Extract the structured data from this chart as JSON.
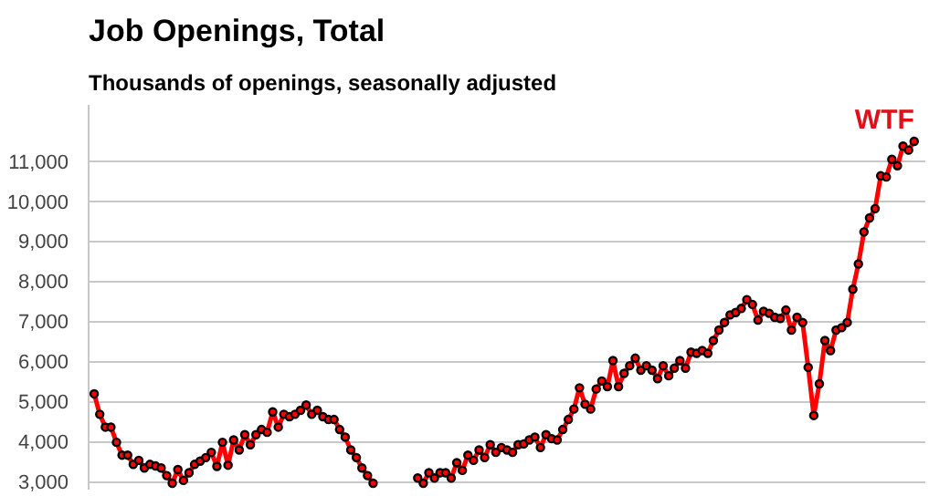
{
  "chart_data": {
    "type": "line",
    "title": "Job Openings, Total",
    "subtitle": "Thousands of openings, seasonally adjusted",
    "annotations": [
      "WTF"
    ],
    "categories": [
      null,
      null,
      null,
      null,
      null,
      null,
      null,
      null,
      null,
      null,
      null,
      null,
      null,
      null,
      null,
      null,
      null,
      null,
      null,
      null,
      null,
      null,
      null,
      null,
      null,
      null,
      null,
      null,
      null,
      null,
      null,
      null,
      null,
      null,
      null,
      null,
      null,
      null,
      null,
      null,
      null,
      null,
      null,
      null,
      null,
      null,
      null,
      null,
      null,
      null,
      null,
      null,
      null,
      null,
      null,
      null,
      null,
      null,
      null,
      null,
      null,
      null,
      null,
      null,
      null,
      null,
      null,
      null,
      null,
      null,
      null,
      null,
      null,
      null,
      null,
      null,
      null,
      null,
      null,
      null,
      null,
      null,
      null,
      null,
      null,
      null,
      null,
      null,
      null,
      null,
      null,
      null,
      null,
      null,
      null,
      null,
      null,
      null,
      null,
      null,
      null,
      null,
      null,
      null,
      null,
      null,
      null,
      null,
      null,
      null,
      null,
      null,
      null,
      null,
      null,
      null,
      null,
      null,
      null,
      null,
      null,
      null,
      null,
      null,
      null,
      null,
      null,
      null,
      null,
      null,
      null,
      null,
      null,
      null,
      null,
      null,
      null,
      null,
      null,
      null,
      null,
      null,
      null,
      null,
      null,
      null,
      null,
      null
    ],
    "series": [
      {
        "color": "#ff0000",
        "values": [
          5190,
          4680,
          4360,
          4360,
          3980,
          3660,
          3660,
          3430,
          3530,
          3340,
          3430,
          3390,
          3340,
          3150,
          2960,
          3300,
          3030,
          3220,
          3430,
          3510,
          3600,
          3730,
          3380,
          3980,
          3410,
          4040,
          3790,
          4170,
          3920,
          4170,
          4300,
          4230,
          4740,
          4360,
          4680,
          4620,
          4680,
          4780,
          4910,
          4680,
          4780,
          4620,
          4550,
          4550,
          4300,
          4110,
          3790,
          3600,
          3340,
          3150,
          2960,
          null,
          null,
          null,
          null,
          null,
          null,
          null,
          null,
          null,
          null,
          null,
          null,
          null,
          null,
          null,
          null,
          null,
          null,
          null,
          null,
          null,
          null,
          null,
          null,
          null,
          null,
          null,
          null,
          null,
          null,
          null,
          null,
          null,
          null,
          null,
          null,
          null,
          null,
          null,
          null,
          null,
          null,
          null,
          null,
          null,
          null,
          null,
          null,
          null,
          null,
          null,
          null,
          null,
          null,
          null,
          null,
          null,
          null,
          null,
          null,
          null,
          null,
          null,
          null,
          null,
          null,
          null,
          null,
          null,
          null,
          null,
          null,
          null,
          null,
          null,
          null,
          null,
          null,
          null,
          null,
          null,
          null,
          null,
          null,
          null,
          null,
          null,
          null,
          null,
          null,
          null,
          null,
          null,
          null,
          null,
          null,
          null
        ]
      },
      {
        "color": "#ff0000",
        "values": [
          null,
          null,
          null,
          null,
          null,
          null,
          null,
          null,
          null,
          null,
          null,
          null,
          null,
          null,
          null,
          null,
          null,
          null,
          null,
          null,
          null,
          null,
          null,
          null,
          null,
          null,
          null,
          null,
          null,
          null,
          null,
          null,
          null,
          null,
          null,
          null,
          null,
          null,
          null,
          null,
          null,
          null,
          null,
          null,
          null,
          null,
          null,
          null,
          null,
          null,
          null,
          null,
          null,
          null,
          null,
          null,
          null,
          null,
          3090,
          2960,
          3220,
          3090,
          3220,
          3220,
          3090,
          3470,
          3280,
          3660,
          3530,
          3790,
          3600,
          3920,
          3730,
          3850,
          3790,
          3730,
          3920,
          3940,
          4040,
          4110,
          3850,
          4170,
          4070,
          4040,
          4300,
          4550,
          4810,
          5340,
          4930,
          4810,
          5310,
          5510,
          5370,
          6020,
          5370,
          5700,
          5890,
          6080,
          5780,
          5890,
          5780,
          5570,
          5890,
          5640,
          5830,
          6020,
          5830,
          6230,
          6200,
          6270,
          6200,
          6520,
          6780,
          6970,
          7160,
          7220,
          7320,
          7540,
          7420,
          7030,
          7250,
          7200,
          7100,
          7070,
          7280,
          6780,
          7100,
          6970,
          5850,
          4650,
          5440,
          6520,
          6270,
          6780,
          6840,
          6970,
          7800,
          8430,
          9230,
          9580,
          9810,
          10630,
          10600,
          11040,
          10880,
          11370,
          11270,
          11490
        ]
      }
    ],
    "ylim": [
      2800,
      12400
    ],
    "yticks": [
      {
        "value": 3000,
        "label": "3,000"
      },
      {
        "value": 4000,
        "label": "4,000"
      },
      {
        "value": 5000,
        "label": "5,000"
      },
      {
        "value": 6000,
        "label": "6,000"
      },
      {
        "value": 7000,
        "label": "7,000"
      },
      {
        "value": 8000,
        "label": "8,000"
      },
      {
        "value": 9000,
        "label": "9,000"
      },
      {
        "value": 10000,
        "label": "10,000"
      },
      {
        "value": 11000,
        "label": "11,000"
      }
    ],
    "grid": "y",
    "tick_labels": "y",
    "marker": "circle",
    "line_style": "solid"
  }
}
